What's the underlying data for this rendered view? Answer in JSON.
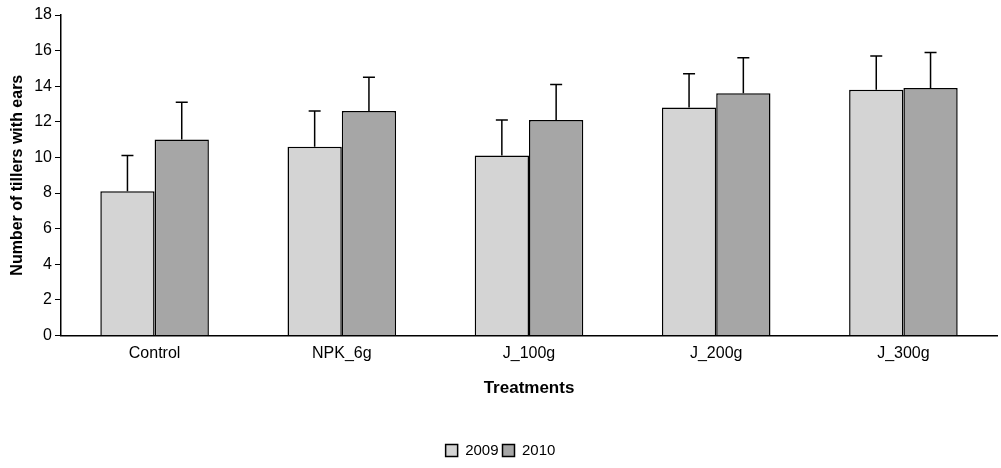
{
  "chart_data": {
    "type": "bar",
    "xlabel": "Treatments",
    "ylabel": "Number of tillers with ears",
    "categories": [
      "Control",
      "NPK_6g",
      "J_100g",
      "J_200g",
      "J_300g"
    ],
    "series": [
      {
        "name": "2009",
        "color": "#d4d4d4",
        "values": [
          8.1,
          10.6,
          10.1,
          12.8,
          13.8
        ],
        "errors": [
          [
            8.1,
            10.1
          ],
          [
            10.6,
            12.6
          ],
          [
            10.1,
            12.1
          ],
          [
            12.8,
            14.7
          ],
          [
            13.8,
            15.7
          ]
        ]
      },
      {
        "name": "2010",
        "color": "#a6a6a6",
        "values": [
          11.0,
          12.6,
          12.1,
          13.6,
          13.9
        ],
        "errors": [
          [
            11.0,
            13.1
          ],
          [
            12.6,
            14.5
          ],
          [
            12.1,
            14.1
          ],
          [
            13.6,
            15.6
          ],
          [
            13.9,
            15.9
          ]
        ]
      }
    ],
    "ylim": [
      0,
      18
    ],
    "yticks": [
      0,
      2,
      4,
      6,
      8,
      10,
      12,
      14,
      16,
      18
    ],
    "grid": false,
    "legend": "bottom"
  }
}
